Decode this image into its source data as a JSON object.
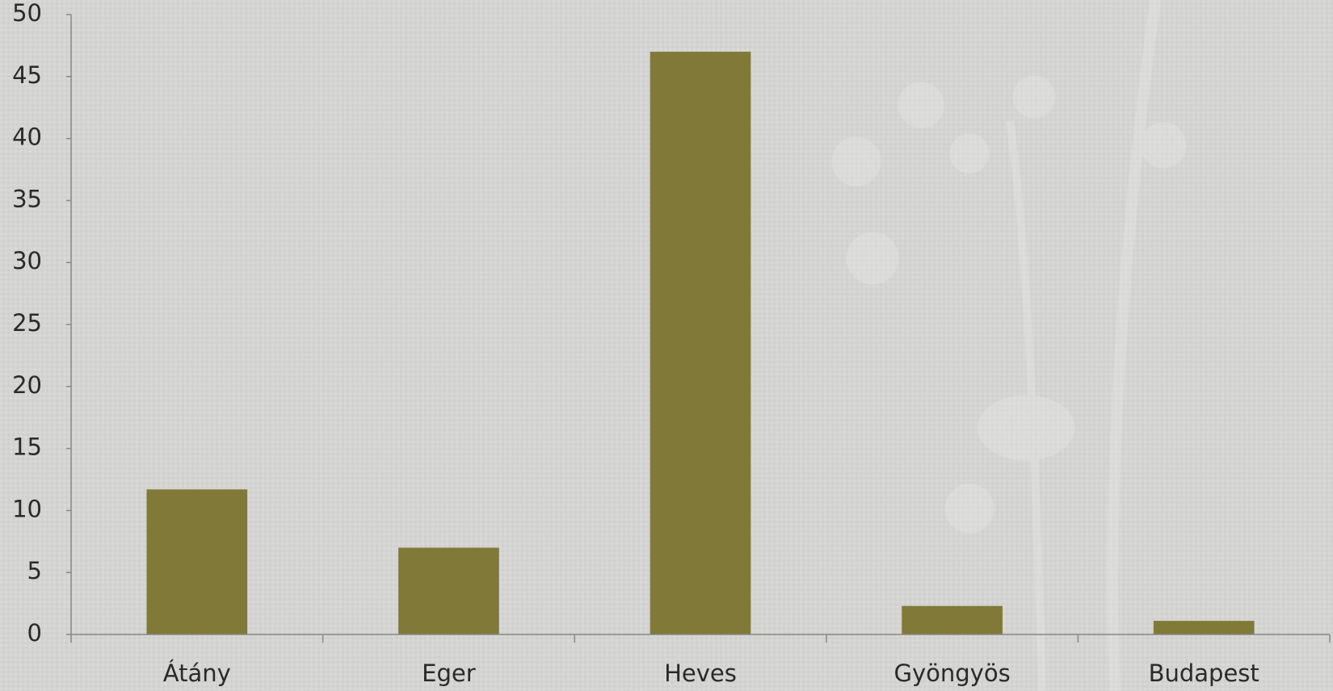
{
  "chart_data": {
    "type": "bar",
    "categories": [
      "Átány",
      "Eger",
      "Heves",
      "Gyöngyös",
      "Budapest"
    ],
    "values": [
      11.7,
      7,
      47,
      2.3,
      1.1
    ],
    "color": "#817938",
    "ylim": [
      0,
      50
    ],
    "yticks": [
      0,
      5,
      10,
      15,
      20,
      25,
      30,
      35,
      40,
      45,
      50
    ],
    "grid": false
  }
}
